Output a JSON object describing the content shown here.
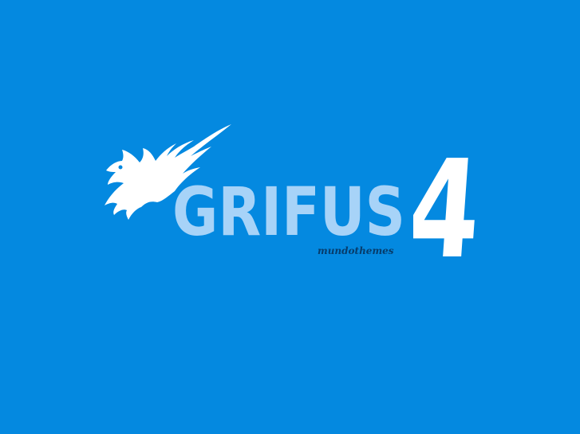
{
  "logo": {
    "wordmark_text": "GRIFUS",
    "version_text": "4",
    "tagline_text": "mundothemes",
    "icon": "griffin-icon"
  },
  "colors": {
    "background": "#0489e0",
    "wordmark": "#a7d3f8",
    "white": "#ffffff",
    "tagline": "#073c6b"
  }
}
